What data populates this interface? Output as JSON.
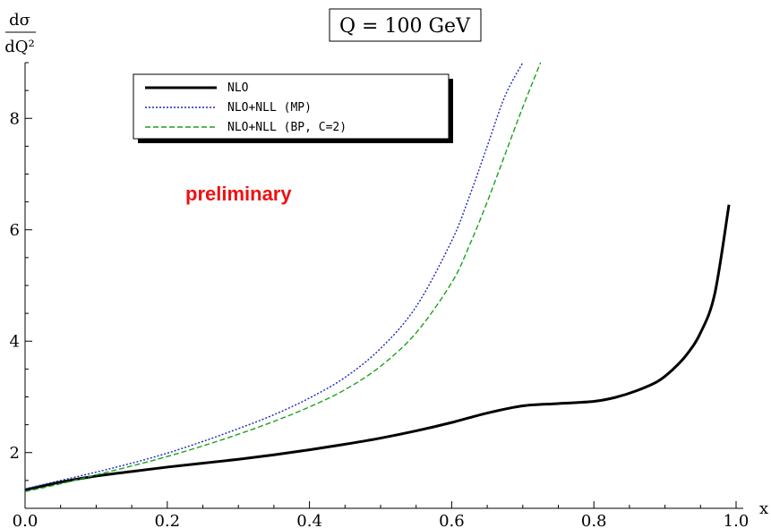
{
  "chart_data": {
    "type": "line",
    "title": "Q = 100 GeV",
    "xlabel": "x",
    "ylabel_num": "dσ",
    "ylabel_den": "dQ²",
    "xlim": [
      0.0,
      1.0
    ],
    "ylim": [
      1.0,
      9.0
    ],
    "xticks": [
      0.0,
      0.2,
      0.4,
      0.6,
      0.8,
      1.0
    ],
    "xtick_labels": [
      "0.0",
      "0.2",
      "0.4",
      "0.6",
      "0.8",
      "1.0"
    ],
    "yticks": [
      2,
      4,
      6,
      8
    ],
    "ytick_labels": [
      "2",
      "4",
      "6",
      "8"
    ],
    "grid": false,
    "legend_position": "top-left",
    "annotation": "preliminary",
    "annotation_color": "#ee1111",
    "series": [
      {
        "name": "NLO",
        "color": "#000000",
        "style": "solid",
        "x": [
          0.0,
          0.05,
          0.1,
          0.15,
          0.2,
          0.25,
          0.3,
          0.35,
          0.4,
          0.45,
          0.5,
          0.55,
          0.6,
          0.65,
          0.7,
          0.75,
          0.8,
          0.83,
          0.86,
          0.89,
          0.91,
          0.93,
          0.95,
          0.97,
          0.99
        ],
        "y": [
          1.33,
          1.47,
          1.58,
          1.66,
          1.74,
          1.81,
          1.88,
          1.96,
          2.05,
          2.15,
          2.26,
          2.39,
          2.54,
          2.71,
          2.84,
          2.88,
          2.92,
          2.99,
          3.11,
          3.28,
          3.48,
          3.75,
          4.15,
          4.85,
          6.45
        ]
      },
      {
        "name": "NLO+NLL (MP)",
        "color": "#1a28b8",
        "style": "dotted",
        "x": [
          0.0,
          0.05,
          0.1,
          0.15,
          0.2,
          0.25,
          0.3,
          0.35,
          0.4,
          0.45,
          0.5,
          0.55,
          0.6,
          0.625,
          0.65,
          0.675,
          0.7
        ],
        "y": [
          1.35,
          1.5,
          1.65,
          1.81,
          1.99,
          2.2,
          2.43,
          2.68,
          2.98,
          3.35,
          3.87,
          4.62,
          5.8,
          6.6,
          7.5,
          8.4,
          9.0
        ]
      },
      {
        "name": "NLO+NLL (BP, C=2)",
        "color": "#1aa31a",
        "style": "dashed",
        "x": [
          0.0,
          0.05,
          0.1,
          0.15,
          0.2,
          0.25,
          0.3,
          0.35,
          0.4,
          0.45,
          0.5,
          0.55,
          0.6,
          0.625,
          0.65,
          0.675,
          0.7,
          0.725
        ],
        "y": [
          1.3,
          1.44,
          1.6,
          1.76,
          1.93,
          2.12,
          2.33,
          2.56,
          2.82,
          3.13,
          3.55,
          4.15,
          5.05,
          5.72,
          6.5,
          7.35,
          8.2,
          9.0
        ]
      }
    ]
  }
}
